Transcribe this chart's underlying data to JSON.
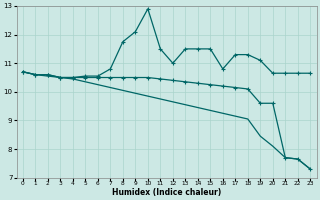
{
  "xlabel": "Humidex (Indice chaleur)",
  "background_color": "#cce8e4",
  "grid_color": "#aad4cc",
  "line_color": "#006666",
  "xlim": [
    -0.5,
    23.5
  ],
  "ylim": [
    7,
    13
  ],
  "xticks": [
    0,
    1,
    2,
    3,
    4,
    5,
    6,
    7,
    8,
    9,
    10,
    11,
    12,
    13,
    14,
    15,
    16,
    17,
    18,
    19,
    20,
    21,
    22,
    23
  ],
  "yticks": [
    7,
    8,
    9,
    10,
    11,
    12,
    13
  ],
  "series1_x": [
    0,
    1,
    2,
    3,
    4,
    5,
    6,
    7,
    8,
    9,
    10,
    11,
    12,
    13,
    14,
    15,
    16,
    17,
    18,
    19,
    20,
    21,
    22,
    23
  ],
  "series1_y": [
    10.7,
    10.6,
    10.6,
    10.5,
    10.5,
    10.55,
    10.55,
    10.8,
    11.75,
    12.1,
    12.9,
    11.5,
    11.0,
    11.5,
    11.5,
    11.5,
    10.8,
    11.3,
    11.3,
    11.1,
    10.65,
    10.65,
    10.65,
    10.65
  ],
  "series2_x": [
    0,
    1,
    2,
    3,
    4,
    5,
    6,
    7,
    8,
    9,
    10,
    11,
    12,
    13,
    14,
    15,
    16,
    17,
    18,
    19,
    20,
    21,
    22,
    23
  ],
  "series2_y": [
    10.7,
    10.6,
    10.6,
    10.5,
    10.5,
    10.5,
    10.5,
    10.5,
    10.5,
    10.5,
    10.5,
    10.45,
    10.4,
    10.35,
    10.3,
    10.25,
    10.2,
    10.15,
    10.1,
    9.6,
    9.6,
    7.7,
    7.65,
    7.3
  ],
  "series3_x": [
    0,
    1,
    2,
    3,
    4,
    5,
    6,
    7,
    8,
    9,
    10,
    11,
    12,
    13,
    14,
    15,
    16,
    17,
    18,
    19,
    20,
    21,
    22,
    23
  ],
  "series3_y": [
    10.7,
    10.6,
    10.55,
    10.5,
    10.45,
    10.35,
    10.25,
    10.15,
    10.05,
    9.95,
    9.85,
    9.75,
    9.65,
    9.55,
    9.45,
    9.35,
    9.25,
    9.15,
    9.05,
    8.45,
    8.1,
    7.7,
    7.65,
    7.3
  ]
}
